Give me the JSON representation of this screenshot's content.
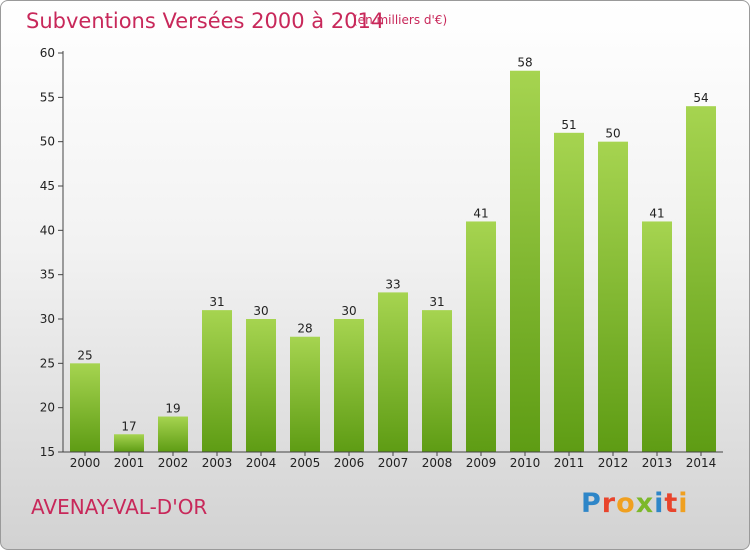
{
  "title": "Subventions Versées 2000 à 2014",
  "unit_note": "(en milliers d'€)",
  "commune": "AVENAY-VAL-D'OR",
  "brand": {
    "text": "Proxiti",
    "letters": [
      {
        "ch": "P",
        "color": "#2e86c8"
      },
      {
        "ch": "r",
        "color": "#e8442c"
      },
      {
        "ch": "o",
        "color": "#f0a020"
      },
      {
        "ch": "x",
        "color": "#7cb82a"
      },
      {
        "ch": "i",
        "color": "#2e86c8"
      },
      {
        "ch": "t",
        "color": "#e8442c"
      },
      {
        "ch": "i",
        "color": "#f0a020"
      }
    ]
  },
  "colors": {
    "title": "#c8285a",
    "bar_light": "#a6d450",
    "bar_dark": "#5e9c14",
    "axis": "#444444"
  },
  "chart_data": {
    "type": "bar",
    "categories": [
      "2000",
      "2001",
      "2002",
      "2003",
      "2004",
      "2005",
      "2006",
      "2007",
      "2008",
      "2009",
      "2010",
      "2011",
      "2012",
      "2013",
      "2014"
    ],
    "values": [
      25,
      17,
      19,
      31,
      30,
      28,
      30,
      33,
      31,
      41,
      58,
      51,
      50,
      41,
      54
    ],
    "ylim": [
      15,
      60
    ],
    "yticks": [
      15,
      20,
      25,
      30,
      35,
      40,
      45,
      50,
      55,
      60
    ],
    "grid": false,
    "data_labels": true
  }
}
